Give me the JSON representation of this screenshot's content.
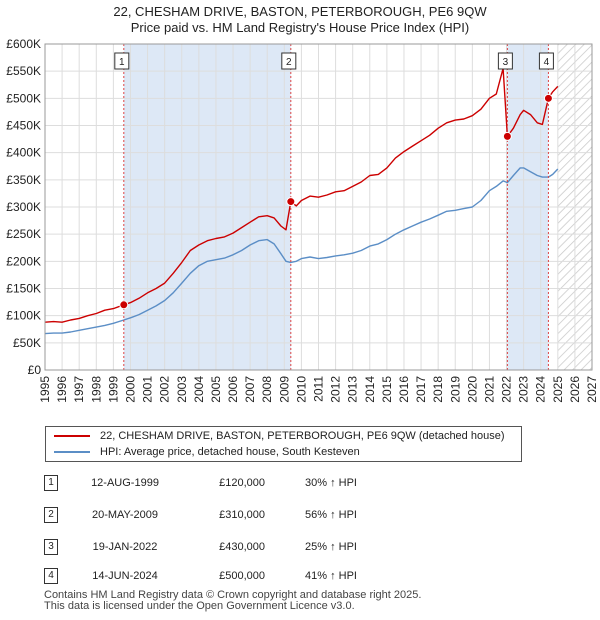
{
  "chart_data": {
    "type": "line",
    "title": "22, CHESHAM DRIVE, BASTON, PETERBOROUGH, PE6 9QW",
    "subtitle": "Price paid vs. HM Land Registry's House Price Index (HPI)",
    "xlabel": "",
    "ylabel": "",
    "xlim": [
      1995,
      2027
    ],
    "ylim": [
      0,
      600000
    ],
    "x_ticks": [
      "1995",
      "1996",
      "1997",
      "1998",
      "1999",
      "2000",
      "2001",
      "2002",
      "2003",
      "2004",
      "2005",
      "2006",
      "2007",
      "2008",
      "2009",
      "2010",
      "2011",
      "2012",
      "2013",
      "2014",
      "2015",
      "2016",
      "2017",
      "2018",
      "2019",
      "2020",
      "2021",
      "2022",
      "2023",
      "2024",
      "2025",
      "2026",
      "2027"
    ],
    "y_ticks": [
      {
        "value": 0,
        "label": "£0"
      },
      {
        "value": 50000,
        "label": "£50K"
      },
      {
        "value": 100000,
        "label": "£100K"
      },
      {
        "value": 150000,
        "label": "£150K"
      },
      {
        "value": 200000,
        "label": "£200K"
      },
      {
        "value": 250000,
        "label": "£250K"
      },
      {
        "value": 300000,
        "label": "£300K"
      },
      {
        "value": 350000,
        "label": "£350K"
      },
      {
        "value": 400000,
        "label": "£400K"
      },
      {
        "value": 450000,
        "label": "£450K"
      },
      {
        "value": 500000,
        "label": "£500K"
      },
      {
        "value": 550000,
        "label": "£550K"
      },
      {
        "value": 600000,
        "label": "£600K"
      }
    ],
    "grid": true,
    "legend_position": "bottom",
    "shaded_ranges": [
      {
        "from": 1999.61,
        "to": 2009.38,
        "color": "#dde8f6"
      },
      {
        "from": 2022.05,
        "to": 2024.45,
        "color": "#dde8f6"
      }
    ],
    "hatched_range": {
      "from": 2025.0,
      "to": 2027.0
    },
    "series": [
      {
        "name": "22, CHESHAM DRIVE, BASTON, PETERBOROUGH, PE6 9QW (detached house)",
        "color": "#cc0000",
        "points": [
          [
            1995.0,
            88000
          ],
          [
            1995.5,
            89000
          ],
          [
            1996.0,
            88000
          ],
          [
            1996.5,
            92000
          ],
          [
            1997.0,
            95000
          ],
          [
            1997.5,
            100000
          ],
          [
            1998.0,
            104000
          ],
          [
            1998.5,
            110000
          ],
          [
            1999.0,
            113000
          ],
          [
            1999.61,
            120000
          ],
          [
            2000.0,
            124000
          ],
          [
            2000.5,
            132000
          ],
          [
            2001.0,
            142000
          ],
          [
            2001.5,
            150000
          ],
          [
            2002.0,
            160000
          ],
          [
            2002.5,
            178000
          ],
          [
            2003.0,
            198000
          ],
          [
            2003.5,
            220000
          ],
          [
            2004.0,
            230000
          ],
          [
            2004.5,
            238000
          ],
          [
            2005.0,
            242000
          ],
          [
            2005.5,
            245000
          ],
          [
            2006.0,
            252000
          ],
          [
            2006.5,
            262000
          ],
          [
            2007.0,
            272000
          ],
          [
            2007.5,
            282000
          ],
          [
            2008.0,
            284000
          ],
          [
            2008.4,
            280000
          ],
          [
            2008.8,
            265000
          ],
          [
            2009.1,
            258000
          ],
          [
            2009.38,
            310000
          ],
          [
            2009.7,
            302000
          ],
          [
            2010.0,
            312000
          ],
          [
            2010.5,
            320000
          ],
          [
            2011.0,
            318000
          ],
          [
            2011.5,
            322000
          ],
          [
            2012.0,
            328000
          ],
          [
            2012.5,
            330000
          ],
          [
            2013.0,
            338000
          ],
          [
            2013.5,
            346000
          ],
          [
            2014.0,
            358000
          ],
          [
            2014.5,
            360000
          ],
          [
            2015.0,
            372000
          ],
          [
            2015.5,
            390000
          ],
          [
            2016.0,
            402000
          ],
          [
            2016.5,
            412000
          ],
          [
            2017.0,
            422000
          ],
          [
            2017.5,
            432000
          ],
          [
            2018.0,
            445000
          ],
          [
            2018.5,
            455000
          ],
          [
            2019.0,
            460000
          ],
          [
            2019.5,
            462000
          ],
          [
            2020.0,
            468000
          ],
          [
            2020.5,
            480000
          ],
          [
            2021.0,
            500000
          ],
          [
            2021.4,
            508000
          ],
          [
            2021.8,
            555000
          ],
          [
            2022.05,
            430000
          ],
          [
            2022.4,
            445000
          ],
          [
            2022.8,
            470000
          ],
          [
            2023.0,
            478000
          ],
          [
            2023.4,
            470000
          ],
          [
            2023.8,
            455000
          ],
          [
            2024.1,
            452000
          ],
          [
            2024.45,
            500000
          ],
          [
            2024.7,
            512000
          ],
          [
            2025.0,
            522000
          ]
        ]
      },
      {
        "name": "HPI: Average price, detached house, South Kesteven",
        "color": "#5b8ec6",
        "points": [
          [
            1995.0,
            67000
          ],
          [
            1995.5,
            68000
          ],
          [
            1996.0,
            68000
          ],
          [
            1996.5,
            70000
          ],
          [
            1997.0,
            73000
          ],
          [
            1997.5,
            76000
          ],
          [
            1998.0,
            79000
          ],
          [
            1998.5,
            82000
          ],
          [
            1999.0,
            86000
          ],
          [
            1999.61,
            92000
          ],
          [
            2000.0,
            96000
          ],
          [
            2000.5,
            102000
          ],
          [
            2001.0,
            110000
          ],
          [
            2001.5,
            118000
          ],
          [
            2002.0,
            128000
          ],
          [
            2002.5,
            142000
          ],
          [
            2003.0,
            160000
          ],
          [
            2003.5,
            178000
          ],
          [
            2004.0,
            192000
          ],
          [
            2004.5,
            200000
          ],
          [
            2005.0,
            203000
          ],
          [
            2005.5,
            206000
          ],
          [
            2006.0,
            212000
          ],
          [
            2006.5,
            220000
          ],
          [
            2007.0,
            230000
          ],
          [
            2007.5,
            238000
          ],
          [
            2008.0,
            240000
          ],
          [
            2008.4,
            232000
          ],
          [
            2008.8,
            214000
          ],
          [
            2009.1,
            200000
          ],
          [
            2009.38,
            198000
          ],
          [
            2009.7,
            200000
          ],
          [
            2010.0,
            205000
          ],
          [
            2010.5,
            208000
          ],
          [
            2011.0,
            205000
          ],
          [
            2011.5,
            207000
          ],
          [
            2012.0,
            210000
          ],
          [
            2012.5,
            212000
          ],
          [
            2013.0,
            215000
          ],
          [
            2013.5,
            220000
          ],
          [
            2014.0,
            228000
          ],
          [
            2014.5,
            232000
          ],
          [
            2015.0,
            240000
          ],
          [
            2015.5,
            250000
          ],
          [
            2016.0,
            258000
          ],
          [
            2016.5,
            265000
          ],
          [
            2017.0,
            272000
          ],
          [
            2017.5,
            278000
          ],
          [
            2018.0,
            285000
          ],
          [
            2018.5,
            292000
          ],
          [
            2019.0,
            294000
          ],
          [
            2019.5,
            297000
          ],
          [
            2020.0,
            300000
          ],
          [
            2020.5,
            312000
          ],
          [
            2021.0,
            330000
          ],
          [
            2021.4,
            338000
          ],
          [
            2021.8,
            348000
          ],
          [
            2022.05,
            345000
          ],
          [
            2022.4,
            358000
          ],
          [
            2022.8,
            372000
          ],
          [
            2023.0,
            372000
          ],
          [
            2023.4,
            365000
          ],
          [
            2023.8,
            358000
          ],
          [
            2024.1,
            355000
          ],
          [
            2024.45,
            355000
          ],
          [
            2024.7,
            360000
          ],
          [
            2025.0,
            370000
          ]
        ]
      }
    ],
    "markers": [
      {
        "label": "1",
        "x": 1999.61,
        "y": 120000
      },
      {
        "label": "2",
        "x": 2009.38,
        "y": 310000
      },
      {
        "label": "3",
        "x": 2022.05,
        "y": 430000
      },
      {
        "label": "4",
        "x": 2024.45,
        "y": 500000
      }
    ]
  },
  "legend": {
    "property_label": "22, CHESHAM DRIVE, BASTON, PETERBOROUGH, PE6 9QW (detached house)",
    "hpi_label": "HPI: Average price, detached house, South Kesteven"
  },
  "sales": [
    {
      "num": "1",
      "date": "12-AUG-1999",
      "price": "£120,000",
      "hpi": "30% ↑ HPI"
    },
    {
      "num": "2",
      "date": "20-MAY-2009",
      "price": "£310,000",
      "hpi": "56% ↑ HPI"
    },
    {
      "num": "3",
      "date": "19-JAN-2022",
      "price": "£430,000",
      "hpi": "25% ↑ HPI"
    },
    {
      "num": "4",
      "date": "14-JUN-2024",
      "price": "£500,000",
      "hpi": "41% ↑ HPI"
    }
  ],
  "footer": {
    "line1": "Contains HM Land Registry data © Crown copyright and database right 2025.",
    "line2": "This data is licensed under the Open Government Licence v3.0."
  }
}
